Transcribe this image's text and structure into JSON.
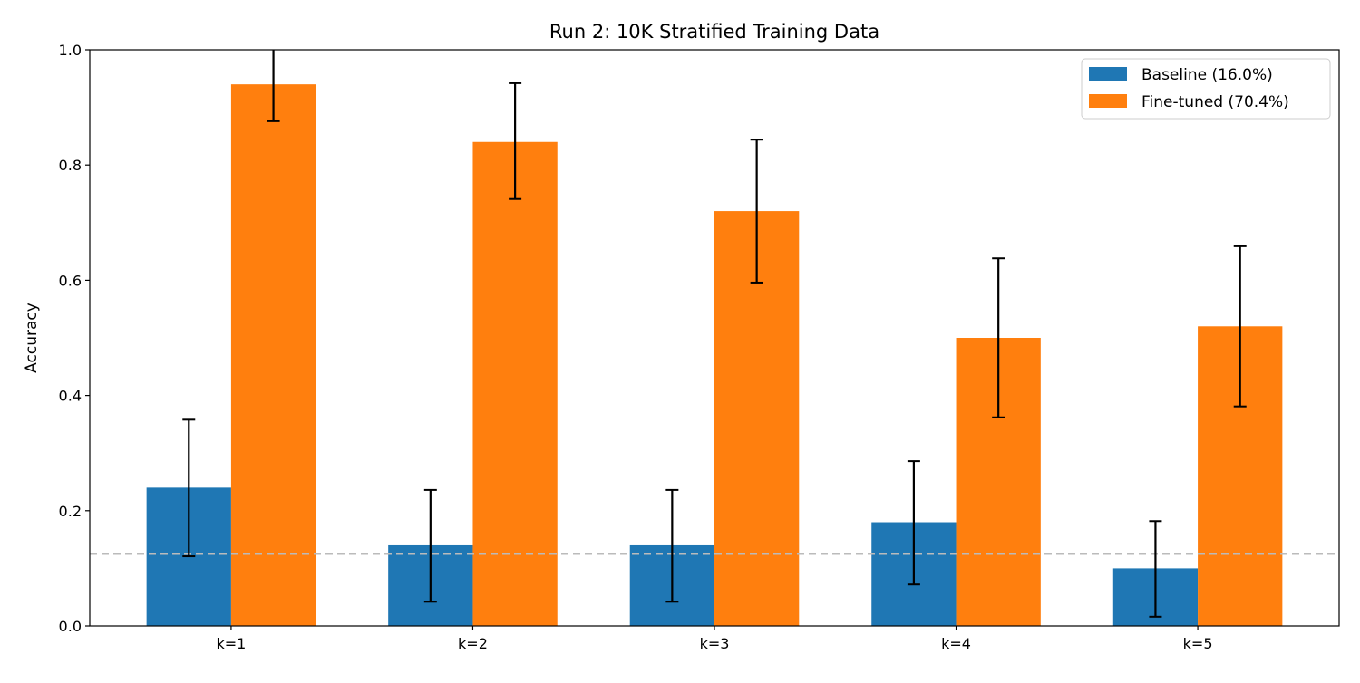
{
  "chart_data": {
    "type": "bar",
    "title": "Run 2: 10K Stratified Training Data",
    "xlabel": "",
    "ylabel": "Accuracy",
    "ylim": [
      0,
      1.0
    ],
    "yticks": [
      "0.0",
      "0.2",
      "0.4",
      "0.6",
      "0.8",
      "1.0"
    ],
    "categories": [
      "k=1",
      "k=2",
      "k=3",
      "k=4",
      "k=5"
    ],
    "grid": false,
    "legend_position": "top-right",
    "reference_line": {
      "y": 0.125,
      "style": "dashed",
      "color": "#bbbbbb"
    },
    "series": [
      {
        "name": "Baseline (16.0%)",
        "color": "#1f77b4",
        "values": [
          0.24,
          0.14,
          0.14,
          0.18,
          0.1
        ],
        "error_low": [
          0.121,
          0.042,
          0.042,
          0.072,
          0.016
        ],
        "error_high": [
          0.358,
          0.236,
          0.236,
          0.286,
          0.182
        ]
      },
      {
        "name": "Fine-tuned (70.4%)",
        "color": "#ff7f0e",
        "values": [
          0.94,
          0.84,
          0.72,
          0.5,
          0.52
        ],
        "error_low": [
          0.876,
          0.741,
          0.596,
          0.362,
          0.381
        ],
        "error_high": [
          1.004,
          0.942,
          0.844,
          0.638,
          0.659
        ]
      }
    ]
  }
}
